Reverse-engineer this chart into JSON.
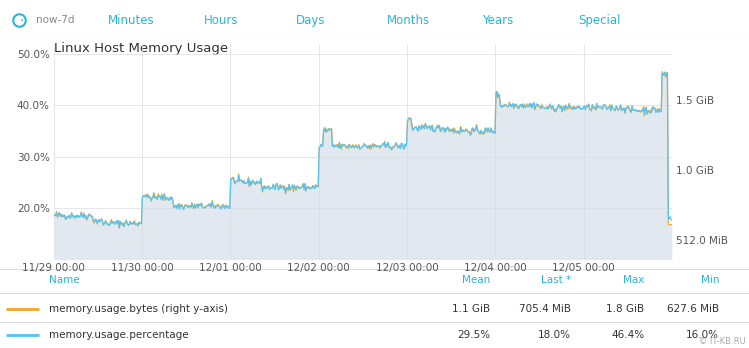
{
  "title": "Linux Host Memory Usage",
  "nav_items": [
    "now-7d",
    "Minutes",
    "Hours",
    "Days",
    "Months",
    "Years",
    "Special"
  ],
  "nav_bg": "#eaf6fc",
  "chart_bg": "#ffffff",
  "plot_bg": "#f5f7fa",
  "grid_color": "#d8dfe6",
  "ylim_pct": [
    10,
    52
  ],
  "yticks_pct": [
    20.0,
    30.0,
    40.0,
    50.0
  ],
  "ytick_labels_pct": [
    "20.0%",
    "30.0%",
    "40.0%",
    "50.0%"
  ],
  "yticks_mib": [
    512,
    1024,
    1536
  ],
  "ytick_labels_mib": [
    "512.0 MiB",
    "1.0 GiB",
    "1.5 GiB"
  ],
  "xtick_labels": [
    "11/29 00:00",
    "11/30 00:00",
    "12/01 00:00",
    "12/02 00:00",
    "12/03 00:00",
    "12/04 00:00",
    "12/05 00:00"
  ],
  "legend_entries": [
    {
      "label": "memory.usage.bytes (right y-axis)",
      "color": "#f5a623",
      "mean": "1.1 GiB",
      "last": "705.4 MiB",
      "max": "1.8 GiB",
      "min": "627.6 MiB"
    },
    {
      "label": "memory.usage.percentage",
      "color": "#4fc3f7",
      "mean": "29.5%",
      "last": "18.0%",
      "max": "46.4%",
      "min": "16.0%"
    }
  ],
  "legend_cols": [
    "Name",
    "Mean",
    "Last *",
    "Max",
    "Min"
  ],
  "footer": "© IT-KB.RU",
  "line_pct_color": "#4fc3f7",
  "line_bytes_color": "#f5a623",
  "fill_color": "#e2e8ef",
  "nav_text_color": "#29b6d6",
  "nav_now_color": "#888888",
  "title_color": "#333333",
  "tick_color": "#555555",
  "legend_header_color": "#29b6d6",
  "legend_text_color": "#333333",
  "footer_color": "#aaaaaa",
  "separator_color": "#cccccc",
  "ylim_mib": [
    380,
    1976
  ]
}
